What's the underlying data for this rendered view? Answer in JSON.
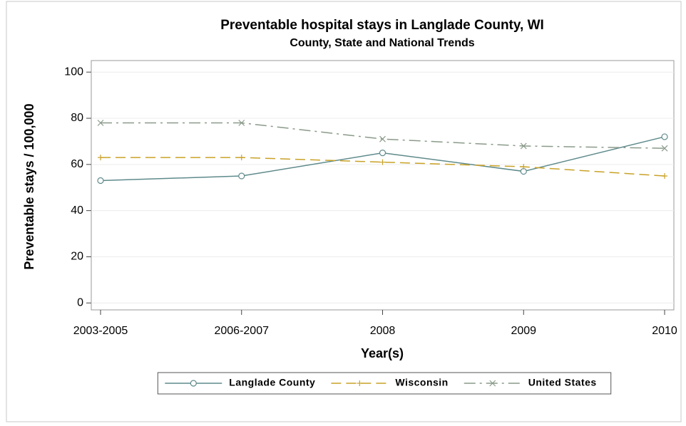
{
  "chart_data": {
    "type": "line",
    "title": "Preventable hospital stays in Langlade County, WI",
    "subtitle": "County, State and National Trends",
    "x_label": "Year(s)",
    "y_label": "Preventable stays / 100,000",
    "categories": [
      "2003-2005",
      "2006-2007",
      "2008",
      "2009",
      "2010"
    ],
    "series": [
      {
        "name": "Langlade County",
        "color": "#5f8a8b",
        "marker": "circle",
        "line_style": "solid",
        "values": [
          53,
          55,
          65,
          57,
          72
        ]
      },
      {
        "name": "Wisconsin",
        "color": "#c9a227",
        "marker": "plus",
        "line_style": "dashed",
        "values": [
          63,
          63,
          61,
          59,
          55
        ]
      },
      {
        "name": "United States",
        "color": "#8a9a8a",
        "marker": "x",
        "line_style": "dashdot",
        "values": [
          78,
          78,
          71,
          68,
          67
        ]
      }
    ],
    "ylim": [
      -3,
      105
    ],
    "yticks": [
      0,
      20,
      40,
      60,
      80,
      100
    ],
    "grid": true,
    "legend": "bottom"
  }
}
